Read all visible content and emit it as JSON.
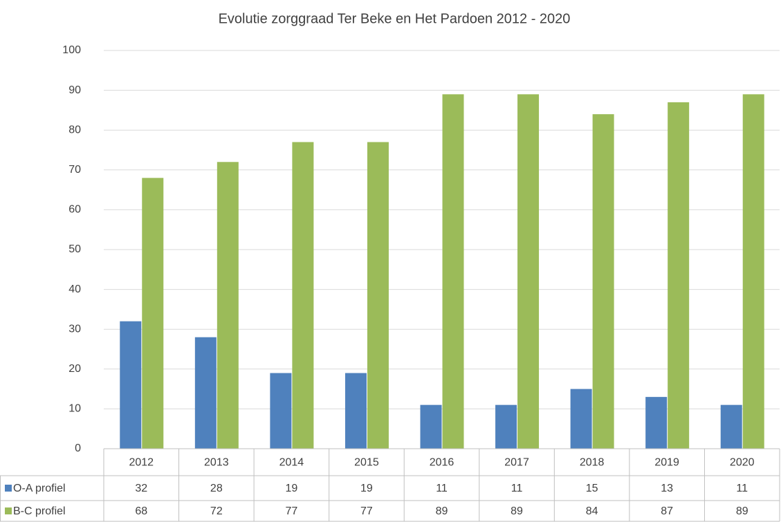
{
  "chart_data": {
    "type": "bar",
    "title": "Evolutie zorggraad Ter Beke en Het Pardoen 2012 - 2020",
    "categories": [
      "2012",
      "2013",
      "2014",
      "2015",
      "2016",
      "2017",
      "2018",
      "2019",
      "2020"
    ],
    "series": [
      {
        "name": "O-A profiel",
        "color": "#4f81bd",
        "values": [
          32,
          28,
          19,
          19,
          11,
          11,
          15,
          13,
          11
        ]
      },
      {
        "name": "B-C profiel",
        "color": "#9bbb59",
        "values": [
          68,
          72,
          77,
          77,
          89,
          89,
          84,
          87,
          89
        ]
      }
    ],
    "ylim": [
      0,
      100
    ],
    "yticks": [
      0,
      10,
      20,
      30,
      40,
      50,
      60,
      70,
      80,
      90,
      100
    ],
    "grid": true
  }
}
